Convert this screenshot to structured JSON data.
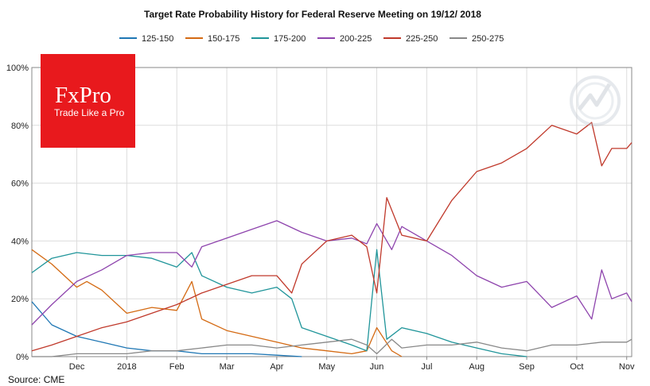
{
  "chart_data": {
    "type": "line",
    "title": "Target Rate Probability History for Federal Reserve Meeting on 19/12/ 2018",
    "xlabel": "",
    "ylabel": "",
    "ylim": [
      0,
      100
    ],
    "y_ticks": [
      "0%",
      "20%",
      "40%",
      "60%",
      "80%",
      "100%"
    ],
    "x_ticks": [
      {
        "label": "Dec",
        "pos": 1
      },
      {
        "label": "2018",
        "pos": 2
      },
      {
        "label": "Feb",
        "pos": 3
      },
      {
        "label": "Mar",
        "pos": 4
      },
      {
        "label": "Apr",
        "pos": 5
      },
      {
        "label": "May",
        "pos": 6
      },
      {
        "label": "Jun",
        "pos": 7
      },
      {
        "label": "Jul",
        "pos": 8
      },
      {
        "label": "Aug",
        "pos": 9
      },
      {
        "label": "Sep",
        "pos": 10
      },
      {
        "label": "Oct",
        "pos": 11
      },
      {
        "label": "Nov",
        "pos": 12
      }
    ],
    "x_range": [
      0.1,
      12.1
    ],
    "legend_position": "top",
    "series": [
      {
        "name": "125-150",
        "color": "#1f77b4",
        "x": [
          0.1,
          0.5,
          1.0,
          1.5,
          2.0,
          2.5,
          3.0,
          3.5,
          4.0,
          4.5,
          5.0,
          5.5
        ],
        "y": [
          19,
          11,
          7,
          5,
          3,
          2,
          2,
          1,
          1,
          1,
          0.5,
          0
        ]
      },
      {
        "name": "150-175",
        "color": "#d46a13",
        "x": [
          0.1,
          0.5,
          1.0,
          1.2,
          1.5,
          2.0,
          2.5,
          3.0,
          3.3,
          3.5,
          4.0,
          4.5,
          5.0,
          5.5,
          6.0,
          6.5,
          6.8,
          7.0,
          7.3,
          7.5
        ],
        "y": [
          37,
          32,
          24,
          26,
          23,
          15,
          17,
          16,
          26,
          13,
          9,
          7,
          5,
          3,
          2,
          1,
          2,
          10,
          2,
          0
        ]
      },
      {
        "name": "175-200",
        "color": "#20959a",
        "x": [
          0.1,
          0.5,
          1.0,
          1.5,
          2.0,
          2.5,
          3.0,
          3.3,
          3.5,
          4.0,
          4.5,
          5.0,
          5.3,
          5.5,
          6.0,
          6.5,
          6.8,
          7.0,
          7.2,
          7.5,
          8.0,
          8.5,
          9.0,
          9.5,
          10.0
        ],
        "y": [
          29,
          34,
          36,
          35,
          35,
          34,
          31,
          36,
          28,
          24,
          22,
          24,
          20,
          10,
          7,
          4,
          2,
          37,
          6,
          10,
          8,
          5,
          3,
          1,
          0
        ]
      },
      {
        "name": "200-225",
        "color": "#8e44ad",
        "x": [
          0.1,
          0.5,
          1.0,
          1.5,
          2.0,
          2.5,
          3.0,
          3.3,
          3.5,
          4.0,
          4.5,
          5.0,
          5.5,
          6.0,
          6.5,
          6.8,
          7.0,
          7.3,
          7.5,
          8.0,
          8.5,
          9.0,
          9.5,
          10.0,
          10.5,
          11.0,
          11.3,
          11.5,
          11.7,
          12.0,
          12.1
        ],
        "y": [
          11,
          18,
          26,
          30,
          35,
          36,
          36,
          31,
          38,
          41,
          44,
          47,
          43,
          40,
          41,
          39,
          46,
          37,
          45,
          40,
          35,
          28,
          24,
          26,
          17,
          21,
          13,
          30,
          20,
          22,
          19
        ]
      },
      {
        "name": "225-250",
        "color": "#c0392b",
        "x": [
          0.1,
          0.5,
          1.0,
          1.5,
          2.0,
          2.5,
          3.0,
          3.5,
          4.0,
          4.5,
          5.0,
          5.3,
          5.5,
          6.0,
          6.5,
          6.8,
          7.0,
          7.2,
          7.5,
          8.0,
          8.5,
          9.0,
          9.5,
          10.0,
          10.5,
          11.0,
          11.3,
          11.5,
          11.7,
          12.0,
          12.1
        ],
        "y": [
          2,
          4,
          7,
          10,
          12,
          15,
          18,
          22,
          25,
          28,
          28,
          22,
          32,
          40,
          42,
          38,
          22,
          55,
          42,
          40,
          54,
          64,
          67,
          72,
          80,
          77,
          81,
          66,
          72,
          72,
          74
        ]
      },
      {
        "name": "250-275",
        "color": "#888888",
        "x": [
          0.1,
          0.5,
          1.0,
          1.5,
          2.0,
          2.5,
          3.0,
          3.5,
          4.0,
          4.5,
          5.0,
          5.5,
          6.0,
          6.5,
          6.8,
          7.0,
          7.3,
          7.5,
          8.0,
          8.5,
          9.0,
          9.5,
          10.0,
          10.5,
          11.0,
          11.5,
          12.0,
          12.1
        ],
        "y": [
          0,
          0,
          1,
          1,
          1,
          2,
          2,
          3,
          4,
          4,
          3,
          4,
          5,
          6,
          4,
          1,
          6,
          3,
          4,
          4,
          5,
          3,
          2,
          4,
          4,
          5,
          5,
          6
        ]
      }
    ]
  },
  "source_label": "Source: CME",
  "logo": {
    "word": "FxPro",
    "tagline": "Trade Like a Pro"
  }
}
